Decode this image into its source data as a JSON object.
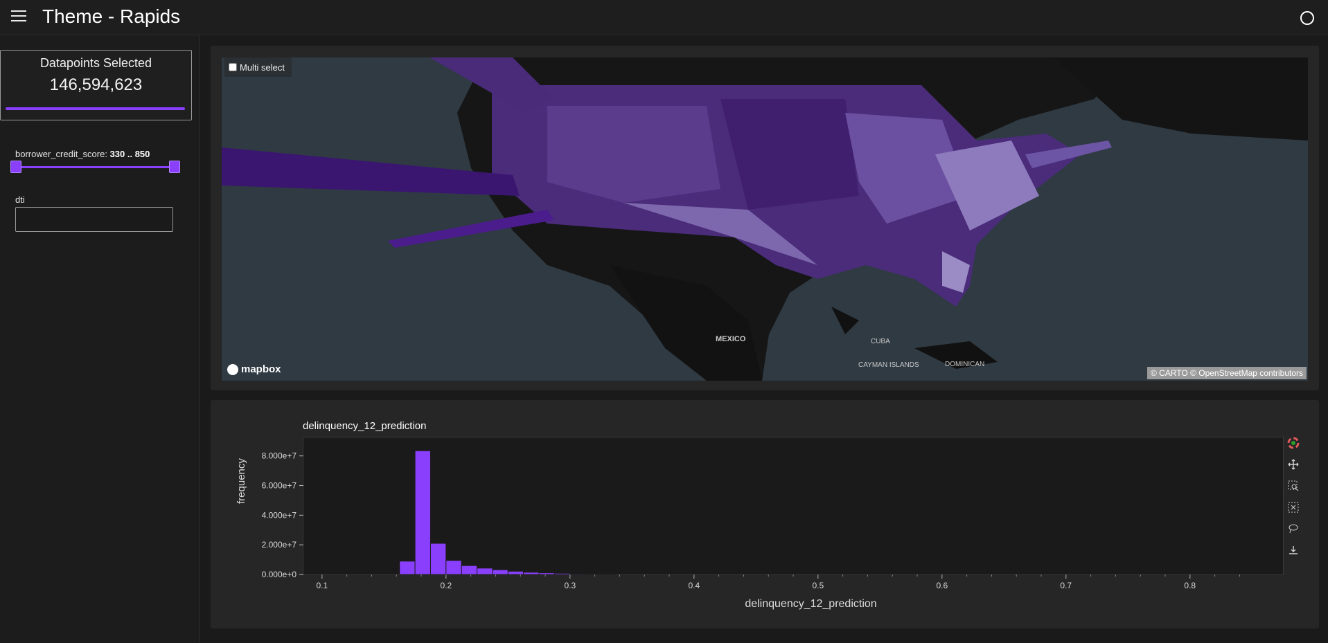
{
  "header": {
    "title": "Theme - Rapids"
  },
  "sidebar": {
    "datapoints": {
      "title": "Datapoints Selected",
      "value": "146,594,623"
    },
    "slider": {
      "label": "borrower_credit_score: ",
      "range": "330 .. 850",
      "min": 330,
      "max": 850
    },
    "dti": {
      "label": "dti",
      "value": ""
    }
  },
  "map": {
    "multi_select": {
      "label": "Multi select",
      "checked": false
    },
    "logo": "mapbox",
    "attribution": "© CARTO © OpenStreetMap contributors",
    "place_labels": [
      "MEXICO",
      "CUBA",
      "CAYMAN ISLANDS",
      "DOMINICAN"
    ]
  },
  "chart_data": {
    "type": "bar",
    "title": "delinquency_12_prediction",
    "xlabel": "delinquency_12_prediction",
    "ylabel": "frequency",
    "xlim": [
      0.085,
      0.875
    ],
    "ylim": [
      0,
      92000000
    ],
    "x_ticks": [
      0.1,
      0.2,
      0.3,
      0.4,
      0.5,
      0.6,
      0.7,
      0.8
    ],
    "x_tick_labels": [
      "0.1",
      "0.2",
      "0.3",
      "0.4",
      "0.5",
      "0.6",
      "0.7",
      "0.8"
    ],
    "y_ticks": [
      0,
      20000000,
      40000000,
      60000000,
      80000000
    ],
    "y_tick_labels": [
      "0.000e+0",
      "2.000e+7",
      "4.000e+7",
      "6.000e+7",
      "8.000e+7"
    ],
    "bin_width": 0.0125,
    "bin_starts": [
      0.1625,
      0.175,
      0.1875,
      0.2,
      0.2125,
      0.225,
      0.2375,
      0.25,
      0.2625,
      0.275,
      0.2875,
      0.3,
      0.3125,
      0.325
    ],
    "values": [
      9000000,
      83500000,
      21000000,
      9500000,
      6000000,
      4300000,
      3200000,
      2200000,
      1500000,
      1100000,
      800000,
      500000,
      300000,
      150000
    ],
    "bar_color": "#8a3ffc",
    "grid": false
  },
  "toolbar": {
    "tools": [
      "bokeh-logo-icon",
      "pan-icon",
      "box-zoom-icon",
      "box-select-icon",
      "lasso-select-icon",
      "save-icon"
    ]
  }
}
